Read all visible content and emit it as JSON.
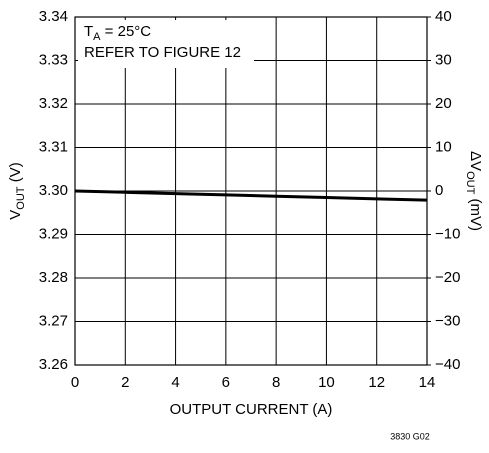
{
  "chart_data": {
    "type": "line",
    "x": [
      0,
      2,
      4,
      6,
      8,
      10,
      12,
      14
    ],
    "series": [
      {
        "color": "#000000",
        "values": [
          3.3,
          3.2997,
          3.2994,
          3.2991,
          3.2988,
          3.2985,
          3.2982,
          3.2979
        ]
      }
    ],
    "xlim": [
      0,
      14
    ],
    "xticks": [
      0,
      2,
      4,
      6,
      8,
      10,
      12,
      14
    ],
    "ylim": [
      3.26,
      3.34
    ],
    "yticks": [
      {
        "value": 3.26,
        "label": "3.26"
      },
      {
        "value": 3.27,
        "label": "3.27"
      },
      {
        "value": 3.28,
        "label": "3.28"
      },
      {
        "value": 3.29,
        "label": "3.29"
      },
      {
        "value": 3.3,
        "label": "3.30"
      },
      {
        "value": 3.31,
        "label": "3.31"
      },
      {
        "value": 3.32,
        "label": "3.32"
      },
      {
        "value": 3.33,
        "label": "3.33"
      },
      {
        "value": 3.34,
        "label": "3.34"
      }
    ],
    "y2lim": [
      -40,
      40
    ],
    "y2ticks": [
      {
        "value": -40,
        "label": "−40"
      },
      {
        "value": -30,
        "label": "−30"
      },
      {
        "value": -20,
        "label": "−20"
      },
      {
        "value": -10,
        "label": "−10"
      },
      0,
      10,
      20,
      30,
      40
    ],
    "grid": true,
    "xlabel": "OUTPUT CURRENT (A)",
    "ylabel": {
      "main": "V",
      "sub": "OUT",
      "rest": " (V)"
    },
    "y2label": {
      "main": "ΔV",
      "sub": "OUT",
      "rest": " (mV)"
    },
    "annotations": [
      {
        "main": "T",
        "sub": "A",
        "rest": " = 25°C"
      },
      "REFER TO FIGURE 12"
    ],
    "footer": "3830 G02"
  }
}
